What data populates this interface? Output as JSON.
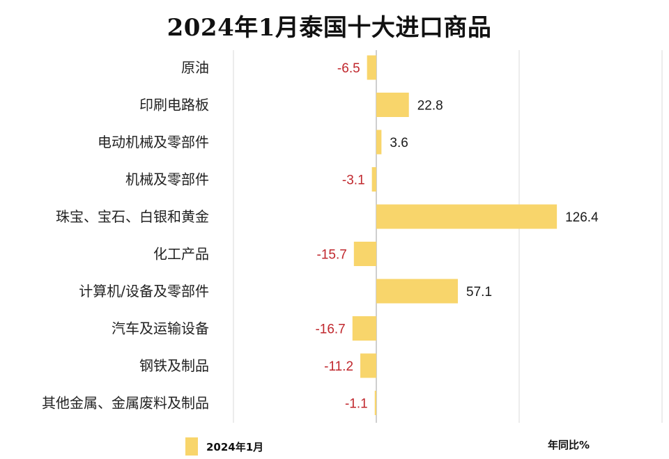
{
  "chart_data": {
    "type": "bar",
    "orientation": "horizontal",
    "title": "2024年1月泰国十大进口商品",
    "categories": [
      "原油",
      "印刷电路板",
      "电动机械及零部件",
      "机械及零部件",
      "珠宝、宝石、白银和黄金",
      "化工产品",
      "计算机/设备及零部件",
      "汽车及运输设备",
      "钢铁及制品",
      "其他金属、金属废料及制品"
    ],
    "series": [
      {
        "name": "2024年1月",
        "values": [
          -6.5,
          22.8,
          3.6,
          -3.1,
          126.4,
          -15.7,
          57.1,
          -16.7,
          -11.2,
          -1.1
        ],
        "labels": [
          "-6.5",
          "22.8",
          "3.6",
          "-3.1",
          "126.4",
          "-15.7",
          "57.1",
          "-16.7",
          "-11.2",
          "-1.1"
        ]
      }
    ],
    "unit_label": "年同比%",
    "xlim": [
      -100,
      200
    ],
    "grid": true,
    "legend_position": "bottom-left"
  },
  "colors": {
    "bar": "#F8D56B",
    "negative_label": "#C0272D",
    "positive_label": "#1A1A1A",
    "category_label": "#222222",
    "grid": "#D9D9D9",
    "zero_line": "#BFBFBF"
  }
}
